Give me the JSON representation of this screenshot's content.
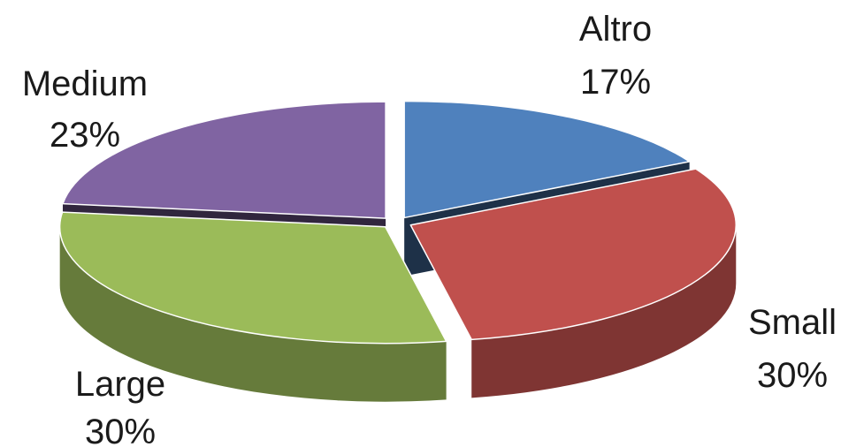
{
  "chart_data": {
    "type": "pie",
    "three_d": true,
    "exploded": true,
    "title": "",
    "legend": "none",
    "slices": [
      {
        "name": "Altro",
        "label": "17%",
        "value": 17,
        "color": "#4F81BD"
      },
      {
        "name": "Small",
        "label": "30%",
        "value": 30,
        "color": "#C0504D"
      },
      {
        "name": "Large",
        "label": "30%",
        "value": 30,
        "color": "#9BBB59"
      },
      {
        "name": "Medium",
        "label": "23%",
        "value": 23,
        "color": "#8064A2"
      }
    ]
  }
}
